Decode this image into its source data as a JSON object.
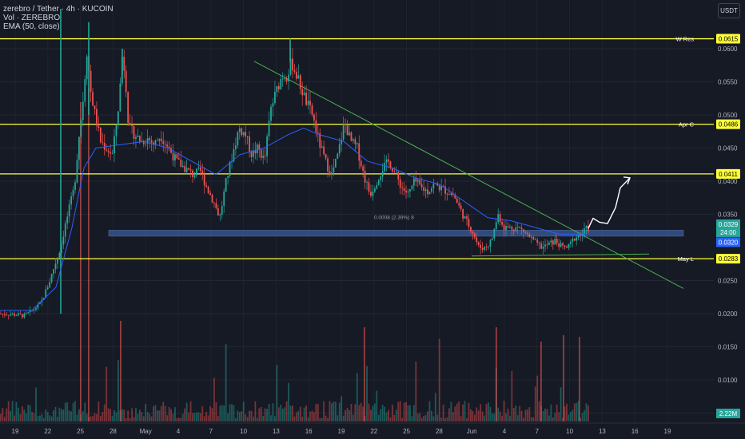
{
  "legend": {
    "symbol_line": "zerebro / Tether · 4h · KUCOIN",
    "volume_line": "Vol · ZEREBRO",
    "ema_line": "EMA (50, close)"
  },
  "currency_button": "USDT",
  "colors": {
    "background": "#161a25",
    "up": "#26a69a",
    "down": "#ef5350",
    "ema": "#2962ff",
    "level": "#ffff3b",
    "trend": "#4caf50",
    "zone": "#3a5a9a",
    "price_tag": "#26a69a",
    "ema_tag": "#2962ff"
  },
  "chart_data": {
    "type": "candlestick",
    "price_axis": {
      "ticks": [
        "0.0600",
        "0.0550",
        "0.0500",
        "0.0450",
        "0.0400",
        "0.0350",
        "0.0250",
        "0.0200",
        "0.0150",
        "0.0100",
        "0.0050"
      ],
      "ylim": [
        0.0,
        0.063
      ]
    },
    "time_axis": {
      "ticks": [
        "19",
        "22",
        "25",
        "28",
        "May",
        "4",
        "7",
        "10",
        "13",
        "16",
        "19",
        "22",
        "25",
        "28",
        "Jun",
        "4",
        "7",
        "10",
        "13",
        "16",
        "19"
      ]
    },
    "levels": [
      {
        "label": "W Res",
        "price_label": "0.0615",
        "value": 0.0615
      },
      {
        "label": "Apr C",
        "price_label": "0.0486",
        "value": 0.0486
      },
      {
        "label": "",
        "price_label": "0.0411",
        "value": 0.0411
      },
      {
        "label": "May L",
        "price_label": "0.0283",
        "value": 0.0283
      }
    ],
    "support_zone": [
      0.0317,
      0.0326
    ],
    "zone_annotation": "0.0008 (2.39%) 8",
    "current_price": {
      "value": 0.0329,
      "label": "0.0329",
      "countdown": "24:00"
    },
    "ema_value": {
      "value": 0.032,
      "label": "0.0320"
    },
    "volume_label": "2.22M",
    "price_path": [
      [
        0,
        0.02
      ],
      [
        15,
        0.0199
      ],
      [
        30,
        0.0197
      ],
      [
        40,
        0.0205
      ],
      [
        50,
        0.0215
      ],
      [
        60,
        0.0245
      ],
      [
        68,
        0.0275
      ],
      [
        75,
        0.03
      ],
      [
        80,
        0.033
      ],
      [
        85,
        0.0355
      ],
      [
        92,
        0.039
      ],
      [
        98,
        0.047
      ],
      [
        102,
        0.051
      ],
      [
        108,
        0.06
      ],
      [
        112,
        0.054
      ],
      [
        118,
        0.05
      ],
      [
        125,
        0.046
      ],
      [
        132,
        0.045
      ],
      [
        140,
        0.044
      ],
      [
        148,
        0.052
      ],
      [
        152,
        0.059
      ],
      [
        156,
        0.056
      ],
      [
        160,
        0.048
      ],
      [
        168,
        0.047
      ],
      [
        176,
        0.046
      ],
      [
        184,
        0.0465
      ],
      [
        192,
        0.0455
      ],
      [
        200,
        0.047
      ],
      [
        210,
        0.045
      ],
      [
        220,
        0.043
      ],
      [
        230,
        0.042
      ],
      [
        240,
        0.041
      ],
      [
        250,
        0.0415
      ],
      [
        258,
        0.039
      ],
      [
        266,
        0.037
      ],
      [
        274,
        0.0345
      ],
      [
        282,
        0.04
      ],
      [
        290,
        0.044
      ],
      [
        298,
        0.048
      ],
      [
        306,
        0.047
      ],
      [
        314,
        0.044
      ],
      [
        322,
        0.045
      ],
      [
        330,
        0.043
      ],
      [
        338,
        0.051
      ],
      [
        346,
        0.054
      ],
      [
        352,
        0.056
      ],
      [
        358,
        0.056
      ],
      [
        364,
        0.058
      ],
      [
        370,
        0.056
      ],
      [
        376,
        0.054
      ],
      [
        382,
        0.052
      ],
      [
        390,
        0.05
      ],
      [
        398,
        0.046
      ],
      [
        406,
        0.043
      ],
      [
        414,
        0.041
      ],
      [
        422,
        0.044
      ],
      [
        430,
        0.049
      ],
      [
        438,
        0.046
      ],
      [
        446,
        0.045
      ],
      [
        454,
        0.041
      ],
      [
        462,
        0.038
      ],
      [
        470,
        0.04
      ],
      [
        478,
        0.042
      ],
      [
        486,
        0.043
      ],
      [
        494,
        0.041
      ],
      [
        502,
        0.039
      ],
      [
        510,
        0.038
      ],
      [
        518,
        0.04
      ],
      [
        526,
        0.039
      ],
      [
        534,
        0.0385
      ],
      [
        542,
        0.0395
      ],
      [
        550,
        0.039
      ],
      [
        558,
        0.0385
      ],
      [
        566,
        0.038
      ],
      [
        574,
        0.036
      ],
      [
        582,
        0.034
      ],
      [
        590,
        0.0325
      ],
      [
        598,
        0.03
      ],
      [
        606,
        0.03
      ],
      [
        614,
        0.031
      ],
      [
        622,
        0.035
      ],
      [
        630,
        0.033
      ],
      [
        638,
        0.033
      ],
      [
        646,
        0.033
      ],
      [
        654,
        0.0325
      ],
      [
        662,
        0.0315
      ],
      [
        670,
        0.0305
      ],
      [
        678,
        0.03
      ],
      [
        686,
        0.0305
      ],
      [
        694,
        0.031
      ],
      [
        702,
        0.03
      ],
      [
        710,
        0.03
      ],
      [
        718,
        0.0315
      ],
      [
        726,
        0.032
      ],
      [
        734,
        0.0329
      ]
    ],
    "ema_path": [
      [
        0,
        0.0205
      ],
      [
        40,
        0.0205
      ],
      [
        70,
        0.024
      ],
      [
        90,
        0.033
      ],
      [
        105,
        0.042
      ],
      [
        120,
        0.045
      ],
      [
        150,
        0.0455
      ],
      [
        180,
        0.046
      ],
      [
        210,
        0.045
      ],
      [
        240,
        0.043
      ],
      [
        270,
        0.041
      ],
      [
        300,
        0.044
      ],
      [
        330,
        0.045
      ],
      [
        360,
        0.047
      ],
      [
        380,
        0.048
      ],
      [
        400,
        0.047
      ],
      [
        430,
        0.046
      ],
      [
        460,
        0.043
      ],
      [
        490,
        0.042
      ],
      [
        520,
        0.0405
      ],
      [
        550,
        0.0395
      ],
      [
        580,
        0.037
      ],
      [
        610,
        0.0345
      ],
      [
        640,
        0.034
      ],
      [
        670,
        0.033
      ],
      [
        700,
        0.032
      ],
      [
        734,
        0.032
      ]
    ],
    "trendlines": [
      {
        "from": [
          318,
          0.0581
        ],
        "to": [
          855,
          0.0238
        ]
      },
      {
        "from": [
          590,
          0.0287
        ],
        "to": [
          812,
          0.029
        ]
      }
    ],
    "projection": [
      [
        736,
        0.0329
      ],
      [
        742,
        0.0344
      ],
      [
        750,
        0.0338
      ],
      [
        760,
        0.0336
      ],
      [
        770,
        0.036
      ],
      [
        776,
        0.039
      ],
      [
        788,
        0.0405
      ]
    ]
  }
}
